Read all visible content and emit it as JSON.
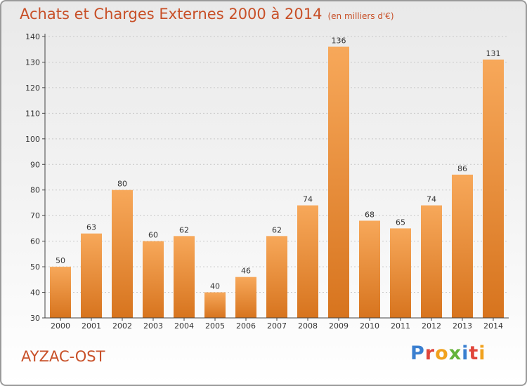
{
  "title": "Achats et Charges Externes 2000 à 2014",
  "subtitle": "(en milliers d'€)",
  "commune": "AYZAC-OST",
  "logo": {
    "letters": [
      "P",
      "r",
      "o",
      "x",
      "i",
      "t",
      "i"
    ]
  },
  "colors": {
    "title": "#c85028",
    "bar_light": "#f7a85a",
    "bar_dark": "#d7741e",
    "axis": "#444444"
  },
  "chart_data": {
    "type": "bar",
    "title": "Achats et Charges Externes 2000 à 2014",
    "subtitle": "(en milliers d'€)",
    "xlabel": "",
    "ylabel": "",
    "categories": [
      "2000",
      "2001",
      "2002",
      "2003",
      "2004",
      "2005",
      "2006",
      "2007",
      "2008",
      "2009",
      "2010",
      "2011",
      "2012",
      "2013",
      "2014"
    ],
    "values": [
      50,
      63,
      80,
      60,
      62,
      40,
      46,
      62,
      74,
      136,
      68,
      65,
      74,
      86,
      131
    ],
    "ylim": [
      30,
      140
    ],
    "yticks": [
      30,
      40,
      50,
      60,
      70,
      80,
      90,
      100,
      110,
      120,
      130,
      140
    ],
    "grid": "y-dashed",
    "legend": "none"
  }
}
